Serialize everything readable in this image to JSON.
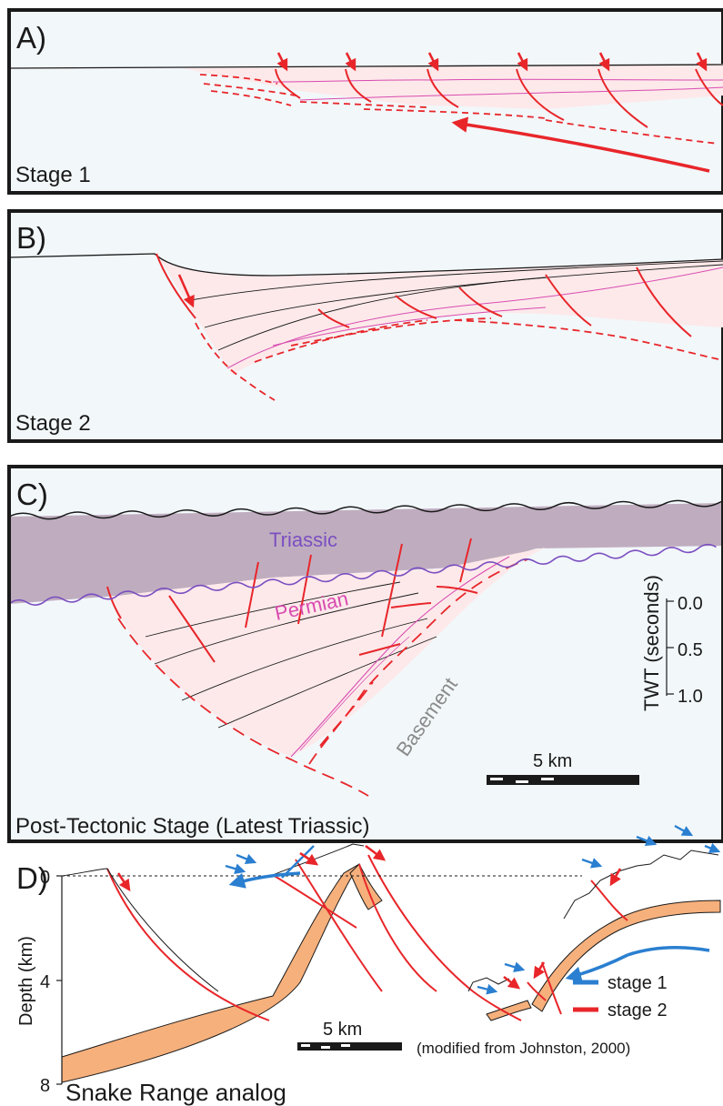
{
  "panels": {
    "a": {
      "letter": "A)",
      "stage": "Stage 1"
    },
    "b": {
      "letter": "B)",
      "stage": "Stage 2"
    },
    "c": {
      "letter": "C)",
      "stage": "Post-Tectonic Stage (Latest Triassic)",
      "unit_triassic": "Triassic",
      "unit_permian": "Permian",
      "unit_basement": "Basement",
      "twt_axis_label": "TWT (seconds)",
      "twt_ticks": [
        "0.0",
        "0.5",
        "1.0"
      ],
      "scale_label": "5 km"
    },
    "d": {
      "letter": "D)",
      "depth_axis_label": "Depth (km)",
      "depth_ticks": [
        "0",
        "4",
        "8"
      ],
      "scale_label": "5 km",
      "legend": [
        {
          "label": "stage 1",
          "color": "#2a7fd0"
        },
        {
          "label": "stage 2",
          "color": "#e8262a"
        }
      ],
      "credit": "(modified from Johnston, 2000)",
      "caption": "Snake Range analog"
    }
  },
  "colors": {
    "fault_red": "#e8262a",
    "horizon_magenta": "#d84bb0",
    "basin_fill": "#fde9ea",
    "basement_fill": "#f2f7fa",
    "triassic_fill": "#bfadbf",
    "unconformity_purple": "#7b4fc0",
    "orange_layer": "#f6b07c",
    "stage1_blue": "#2a7fd0"
  }
}
